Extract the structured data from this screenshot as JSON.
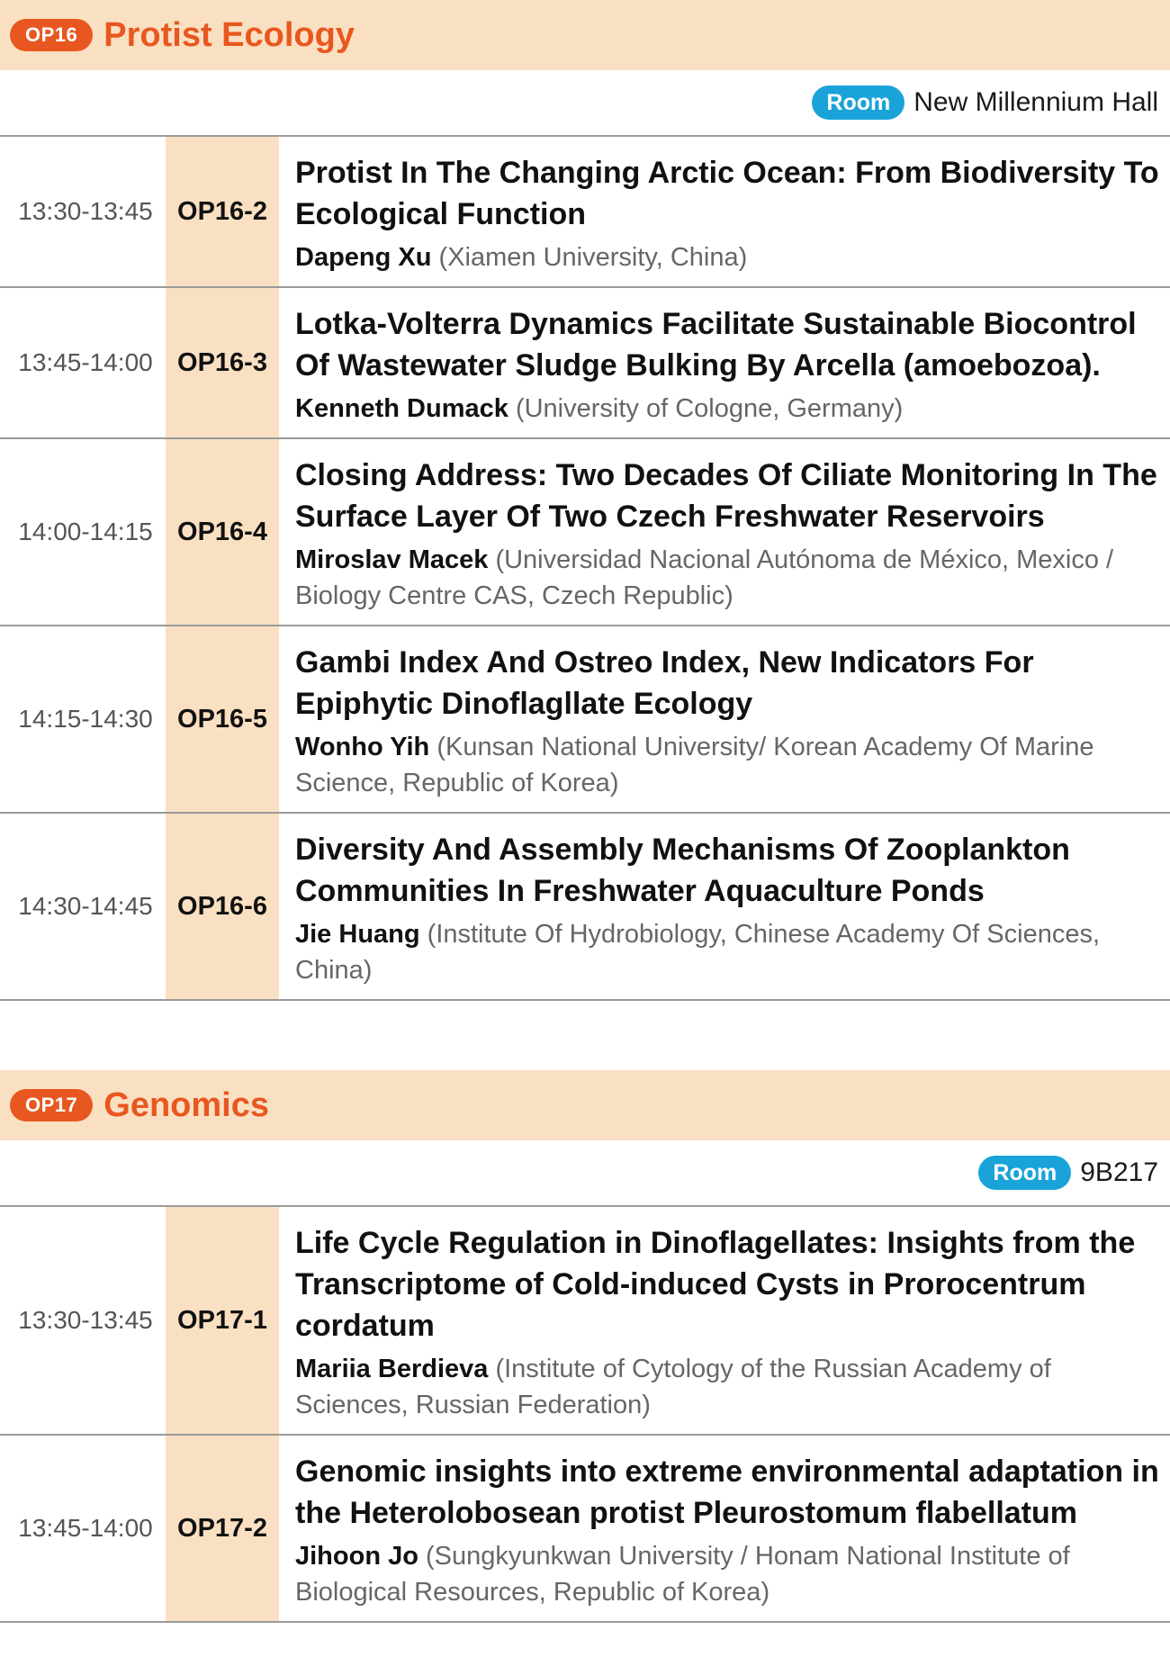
{
  "sessions": [
    {
      "badge": "OP16",
      "title": "Protist Ecology",
      "room_label": "Room",
      "room_name": "New Millennium Hall",
      "talks": [
        {
          "time": "13:30-13:45",
          "code": "OP16-2",
          "title": "Protist In The Changing Arctic Ocean: From Biodiversity To Ecological Function",
          "author": "Dapeng Xu",
          "affiliation": "(Xiamen University, China)"
        },
        {
          "time": "13:45-14:00",
          "code": "OP16-3",
          "title": "Lotka-Volterra Dynamics Facilitate Sustainable Biocontrol Of Wastewater Sludge Bulking By Arcella (amoebozoa).",
          "author": "Kenneth Dumack",
          "affiliation": "(University of Cologne, Germany)"
        },
        {
          "time": "14:00-14:15",
          "code": "OP16-4",
          "title": "Closing Address: Two Decades Of Ciliate Monitoring In The Surface Layer Of Two Czech Freshwater Reservoirs",
          "author": "Miroslav Macek",
          "affiliation": "(Universidad Nacional Autónoma de México, Mexico / Biology Centre CAS, Czech Republic)"
        },
        {
          "time": "14:15-14:30",
          "code": "OP16-5",
          "title": "Gambi Index And Ostreo Index, New Indicators For Epiphytic Dinoflagllate Ecology",
          "author": "Wonho Yih",
          "affiliation": "(Kunsan National University/ Korean Academy Of Marine Science, Republic of Korea)"
        },
        {
          "time": "14:30-14:45",
          "code": "OP16-6",
          "title": "Diversity And Assembly Mechanisms Of Zooplankton Communities In Freshwater Aquaculture Ponds",
          "author": "Jie Huang",
          "affiliation": "(Institute Of Hydrobiology, Chinese Academy Of Sciences, China)"
        }
      ]
    },
    {
      "badge": "OP17",
      "title": "Genomics",
      "room_label": "Room",
      "room_name": "9B217",
      "talks": [
        {
          "time": "13:30-13:45",
          "code": "OP17-1",
          "title": "Life Cycle Regulation in Dinoflagellates: Insights from the Transcriptome of Cold-induced Cysts in Prorocentrum cordatum",
          "author": "Mariia Berdieva",
          "affiliation": "(Institute of Cytology of the Russian Academy of Sciences, Russian Federation)"
        },
        {
          "time": "13:45-14:00",
          "code": "OP17-2",
          "title": "Genomic insights into extreme environmental adaptation in the Heterolobosean protist Pleurostomum flabellatum",
          "author": "Jihoon Jo",
          "affiliation": "(Sungkyunkwan University / Honam National Institute of Biological Resources, Republic of Korea)"
        }
      ]
    }
  ]
}
